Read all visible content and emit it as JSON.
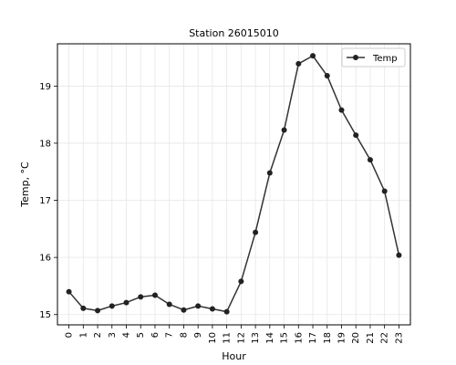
{
  "chart_data": {
    "type": "line",
    "title": "Station 26015010",
    "xlabel": "Hour",
    "ylabel": "Temp, °C",
    "xlim": [
      -0.8,
      23.8
    ],
    "ylim": [
      14.82,
      19.74
    ],
    "x_ticks": [
      0,
      1,
      2,
      3,
      4,
      5,
      6,
      7,
      8,
      9,
      10,
      11,
      12,
      13,
      14,
      15,
      16,
      17,
      18,
      19,
      20,
      21,
      22,
      23
    ],
    "y_ticks": [
      15,
      16,
      17,
      18,
      19
    ],
    "grid": true,
    "legend_position": "top-right",
    "series": [
      {
        "name": "Temp",
        "color": "#333333",
        "x": [
          0,
          1,
          2,
          3,
          4,
          5,
          6,
          7,
          8,
          9,
          10,
          11,
          12,
          13,
          14,
          15,
          16,
          17,
          18,
          19,
          20,
          21,
          22,
          23
        ],
        "values": [
          15.4,
          15.11,
          15.07,
          15.15,
          15.21,
          15.31,
          15.34,
          15.18,
          15.08,
          15.15,
          15.1,
          15.05,
          15.58,
          16.44,
          17.48,
          18.23,
          19.39,
          19.53,
          19.18,
          18.58,
          18.14,
          17.71,
          17.16,
          16.04
        ]
      }
    ]
  }
}
